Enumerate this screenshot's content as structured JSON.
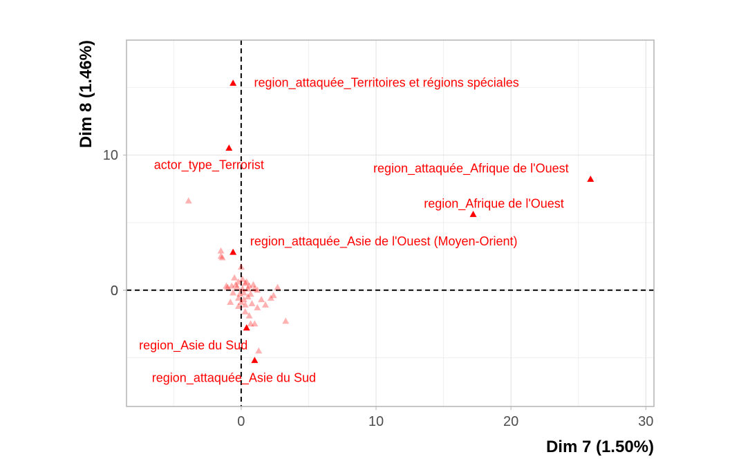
{
  "chart_data": {
    "type": "scatter",
    "title": "",
    "xlabel": "Dim 7 (1.50%)",
    "ylabel": "Dim 8 (1.46%)",
    "xlim": [
      -8.5,
      30.6
    ],
    "ylim": [
      -8.6,
      18.5
    ],
    "x_ticks": [
      0,
      10,
      20,
      30
    ],
    "y_ticks": [
      0,
      10
    ],
    "grid": true,
    "legend": "none",
    "reference_lines": {
      "x": 0,
      "y": 0,
      "style": "dashed"
    },
    "colors": {
      "point": "#ff0000",
      "label": "#ff0000",
      "grid": "#e0e0e0",
      "frame": "#b3b3b3",
      "refline": "#000000"
    },
    "labeled_points": [
      {
        "label": "region_attaquée_Territoires et régions spéciales",
        "x": -0.6,
        "y": 15.3
      },
      {
        "label": "actor_type_Terrorist",
        "x": -0.9,
        "y": 10.5
      },
      {
        "label": "region_attaquée_Afrique de l'Ouest",
        "x": 25.9,
        "y": 8.2
      },
      {
        "label": "region_Afrique de l'Ouest",
        "x": 17.2,
        "y": 5.6
      },
      {
        "label": "region_attaquée_Asie de l'Ouest (Moyen-Orient)",
        "x": -0.6,
        "y": 2.8
      },
      {
        "label": "region_Asie du Sud",
        "x": 0.4,
        "y": -2.8
      },
      {
        "label": "region_attaquée_Asie du Sud",
        "x": 1.0,
        "y": -5.2
      }
    ],
    "unlabeled_points": [
      [
        -3.9,
        6.6
      ],
      [
        -1.5,
        2.9
      ],
      [
        -1.5,
        2.5
      ],
      [
        -1.4,
        2.4
      ],
      [
        0.0,
        1.7
      ],
      [
        -0.5,
        0.9
      ],
      [
        -1.1,
        0.3
      ],
      [
        -1.0,
        0.2
      ],
      [
        -0.7,
        0.3
      ],
      [
        -0.3,
        0.2
      ],
      [
        0.3,
        0.5
      ],
      [
        0.6,
        0.3
      ],
      [
        1.0,
        0.1
      ],
      [
        1.2,
        0.0
      ],
      [
        2.7,
        0.2
      ],
      [
        2.4,
        -0.4
      ],
      [
        2.2,
        -0.6
      ],
      [
        1.8,
        -1.1
      ],
      [
        1.2,
        -1.3
      ],
      [
        0.8,
        -1.0
      ],
      [
        0.5,
        -0.5
      ],
      [
        0.2,
        -0.7
      ],
      [
        0.0,
        -0.9
      ],
      [
        -0.2,
        -1.2
      ],
      [
        0.3,
        -1.6
      ],
      [
        0.6,
        -1.9
      ],
      [
        1.0,
        -2.5
      ],
      [
        0.7,
        -2.5
      ],
      [
        3.3,
        -2.3
      ],
      [
        1.3,
        -4.5
      ],
      [
        -0.2,
        0.6
      ],
      [
        -0.4,
        0.4
      ],
      [
        0.1,
        0.8
      ],
      [
        0.4,
        0.6
      ],
      [
        -0.1,
        -0.3
      ],
      [
        0.2,
        -0.2
      ],
      [
        0.5,
        0.1
      ],
      [
        -0.6,
        -0.2
      ],
      [
        0.7,
        -0.3
      ],
      [
        0.9,
        0.4
      ],
      [
        -0.2,
        -0.6
      ],
      [
        0.3,
        -1.1
      ],
      [
        1.5,
        -0.7
      ],
      [
        -0.8,
        -0.9
      ],
      [
        0.1,
        0.1
      ]
    ]
  }
}
